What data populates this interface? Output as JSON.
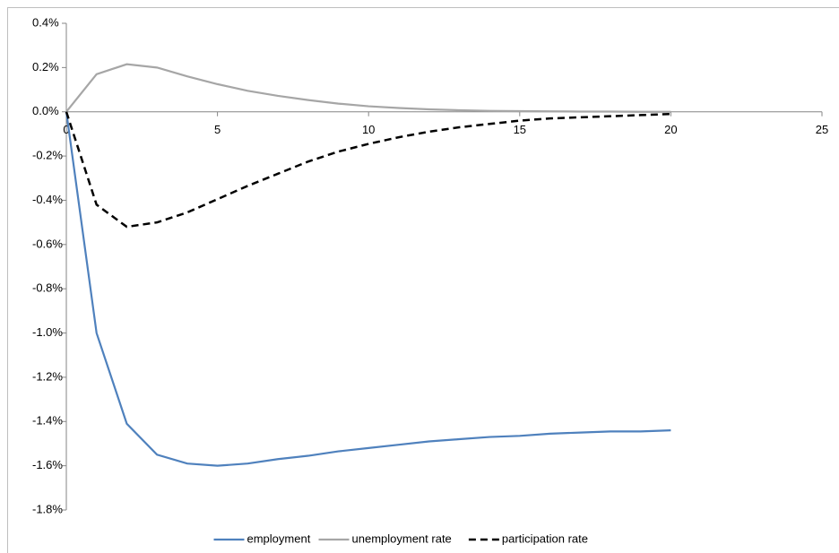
{
  "chart_data": {
    "type": "line",
    "x": [
      0,
      1,
      2,
      3,
      4,
      5,
      6,
      7,
      8,
      9,
      10,
      11,
      12,
      13,
      14,
      15,
      16,
      17,
      18,
      19,
      20
    ],
    "xlim": [
      0,
      25
    ],
    "xticks": [
      0,
      5,
      10,
      15,
      20,
      25
    ],
    "ylim": [
      -1.8,
      0.4
    ],
    "yticks": [
      {
        "value": -1.8,
        "label": "-1.8%"
      },
      {
        "value": -1.6,
        "label": "-1.6%"
      },
      {
        "value": -1.4,
        "label": "-1.4%"
      },
      {
        "value": -1.2,
        "label": "-1.2%"
      },
      {
        "value": -1.0,
        "label": "-1.0%"
      },
      {
        "value": -0.8,
        "label": "-0.8%"
      },
      {
        "value": -0.6,
        "label": "-0.6%"
      },
      {
        "value": -0.4,
        "label": "-0.4%"
      },
      {
        "value": -0.2,
        "label": "-0.2%"
      },
      {
        "value": 0.0,
        "label": "0.0%"
      },
      {
        "value": 0.2,
        "label": "0.2%"
      },
      {
        "value": 0.4,
        "label": "0.4%"
      }
    ],
    "grid": false,
    "legend": "bottom",
    "series": [
      {
        "name": "employment",
        "color": "#4f81bd",
        "dashed": false,
        "values": [
          0,
          -1.0,
          -1.41,
          -1.55,
          -1.59,
          -1.6,
          -1.59,
          -1.57,
          -1.555,
          -1.535,
          -1.52,
          -1.505,
          -1.49,
          -1.48,
          -1.47,
          -1.465,
          -1.455,
          -1.45,
          -1.445,
          -1.445,
          -1.44
        ]
      },
      {
        "name": "unemployment rate",
        "color": "#a6a6a6",
        "dashed": false,
        "values": [
          0,
          0.17,
          0.215,
          0.2,
          0.16,
          0.125,
          0.095,
          0.072,
          0.053,
          0.037,
          0.025,
          0.017,
          0.011,
          0.007,
          0.004,
          0.003,
          0.002,
          0.001,
          0.001,
          0,
          0
        ]
      },
      {
        "name": "participation rate",
        "color": "#000000",
        "dashed": true,
        "values": [
          0,
          -0.42,
          -0.52,
          -0.5,
          -0.455,
          -0.395,
          -0.335,
          -0.28,
          -0.225,
          -0.18,
          -0.145,
          -0.115,
          -0.09,
          -0.07,
          -0.055,
          -0.04,
          -0.03,
          -0.025,
          -0.02,
          -0.015,
          -0.01
        ]
      }
    ]
  }
}
